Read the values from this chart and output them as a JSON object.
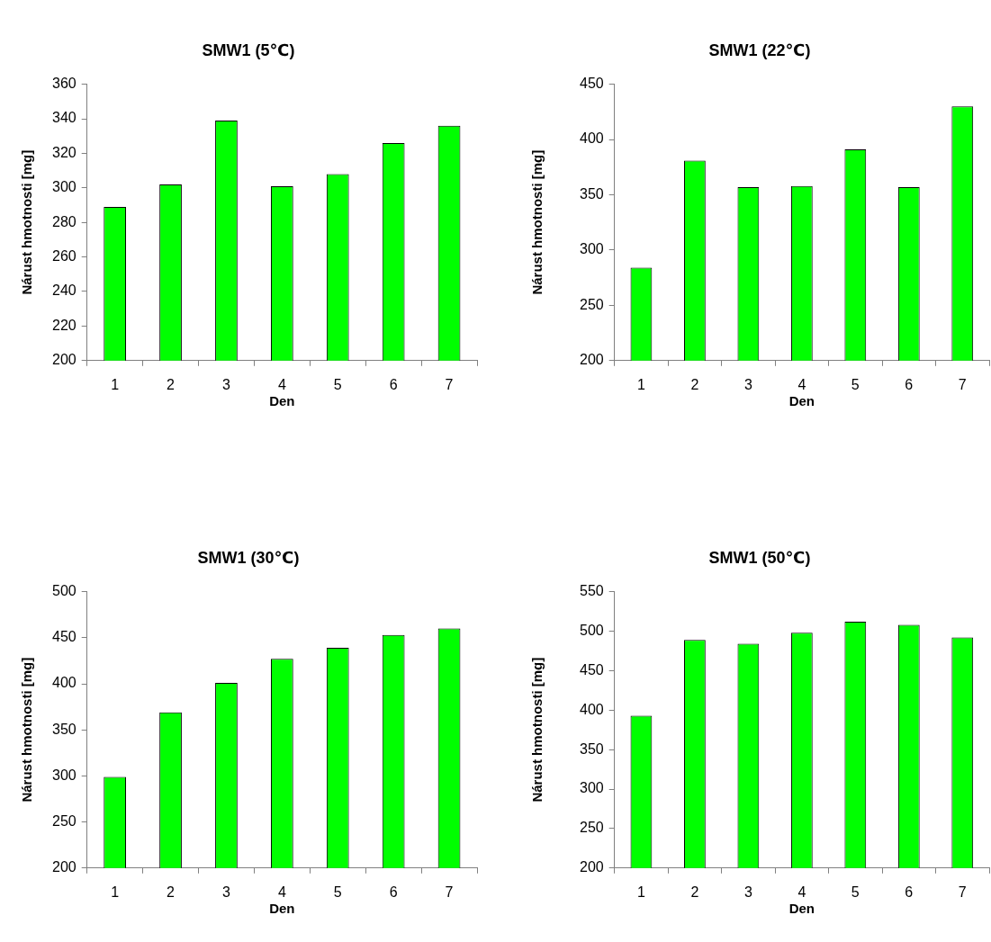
{
  "chart_data": [
    {
      "type": "bar",
      "title": "SMW1 (5℃)",
      "xlabel": "Den",
      "ylabel": "Nárust hmotnosti [mg]",
      "categories": [
        "1",
        "2",
        "3",
        "4",
        "5",
        "6",
        "7"
      ],
      "values": [
        289,
        302,
        339,
        301,
        308,
        326,
        336
      ],
      "color": "#00ff00",
      "ylim": [
        200,
        360
      ],
      "yticks": [
        200,
        220,
        240,
        260,
        280,
        300,
        320,
        340,
        360
      ]
    },
    {
      "type": "bar",
      "title": "SMW1 (22℃)",
      "xlabel": "Den",
      "ylabel": "Nárust hmotnosti [mg]",
      "categories": [
        "1",
        "2",
        "3",
        "4",
        "5",
        "6",
        "7"
      ],
      "values": [
        284,
        381,
        357,
        358,
        391,
        357,
        430
      ],
      "color": "#00ff00",
      "ylim": [
        200,
        450
      ],
      "yticks": [
        200,
        250,
        300,
        350,
        400,
        450
      ]
    },
    {
      "type": "bar",
      "title": "SMW1 (30℃)",
      "xlabel": "Den",
      "ylabel": "Nárust hmotnosti [mg]",
      "categories": [
        "1",
        "2",
        "3",
        "4",
        "5",
        "6",
        "7"
      ],
      "values": [
        299,
        369,
        401,
        427,
        439,
        453,
        460
      ],
      "color": "#00ff00",
      "ylim": [
        200,
        500
      ],
      "yticks": [
        200,
        250,
        300,
        350,
        400,
        450,
        500
      ]
    },
    {
      "type": "bar",
      "title": "SMW1 (50℃)",
      "xlabel": "Den",
      "ylabel": "Nárust hmotnosti [mg]",
      "categories": [
        "1",
        "2",
        "3",
        "4",
        "5",
        "6",
        "7"
      ],
      "values": [
        393,
        489,
        484,
        498,
        512,
        508,
        492
      ],
      "color": "#00ff00",
      "ylim": [
        200,
        550
      ],
      "yticks": [
        200,
        250,
        300,
        350,
        400,
        450,
        500,
        550
      ]
    }
  ]
}
